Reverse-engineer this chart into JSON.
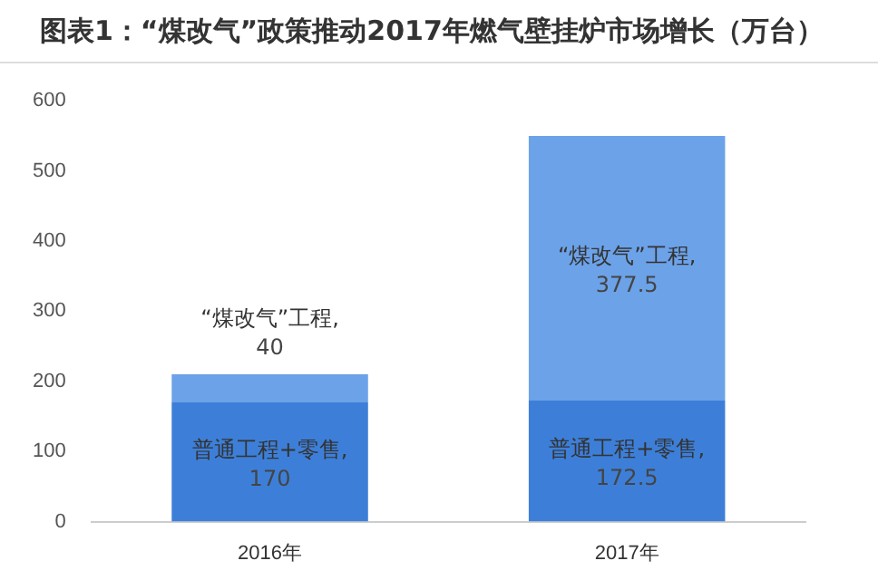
{
  "chart_data": {
    "type": "bar",
    "title": "图表1：“煤改气”政策推动2017年燃气壁挂炉市场增长（万台）",
    "categories": [
      "2016年",
      "2017年"
    ],
    "stacked": true,
    "series": [
      {
        "name": "普通工程+零售,",
        "color": "#3d7fd8",
        "values": [
          170,
          172.5
        ]
      },
      {
        "name": "“煤改气”工程,",
        "color": "#6ca2e8",
        "values": [
          40,
          377.5
        ]
      }
    ],
    "ylim": [
      0,
      600
    ],
    "yticks": [
      0,
      100,
      200,
      300,
      400,
      500,
      600
    ],
    "grid": false,
    "legend": false,
    "data_labels": true
  }
}
